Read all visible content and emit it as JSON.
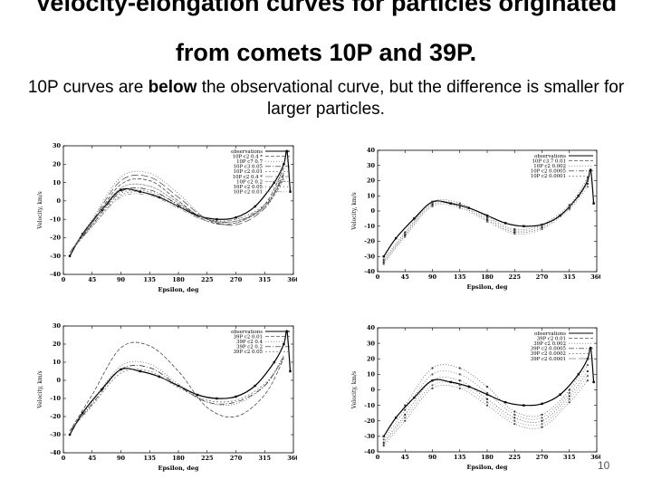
{
  "slide": {
    "title_line1": "Velocity-elongation curves for particles originated",
    "title_line2": "from comets 10P and 39P.",
    "subtitle_start": "10P curves are ",
    "subtitle_emphasis": "below",
    "subtitle_end": " the observational curve, but the difference is smaller for larger particles.",
    "page_number": "10"
  },
  "chart_data": [
    {
      "type": "line",
      "xlabel": "Epsilon, deg",
      "ylabel": "Velocity, km/s",
      "xlim": [
        0,
        360
      ],
      "ylim": [
        -40,
        30
      ],
      "xticks": [
        0,
        45,
        90,
        135,
        180,
        225,
        270,
        315,
        360
      ],
      "yticks": [
        -40,
        -30,
        -20,
        -10,
        0,
        10,
        20,
        30
      ],
      "legend_position": "top-right",
      "series": [
        {
          "name": "observations",
          "x": [
            10,
            30,
            60,
            90,
            120,
            150,
            180,
            210,
            240,
            270,
            300,
            330,
            345,
            350,
            355
          ],
          "values": [
            -30,
            -18,
            -5,
            6,
            5,
            2,
            -3,
            -8,
            -10,
            -9,
            -3,
            10,
            20,
            27,
            5
          ]
        },
        {
          "name": "10P c2 0.4 *",
          "x": [
            10,
            45,
            90,
            135,
            180,
            225,
            270,
            315,
            345
          ],
          "values": [
            -28,
            -12,
            9,
            11,
            0,
            -11,
            -12,
            -2,
            18
          ]
        },
        {
          "name": "10P c7 0.7",
          "x": [
            10,
            45,
            90,
            135,
            180,
            225,
            270,
            315,
            345
          ],
          "values": [
            -28,
            -10,
            13,
            15,
            4,
            -10,
            -12,
            -3,
            16
          ]
        },
        {
          "name": "10P c3 0.05",
          "x": [
            10,
            45,
            90,
            135,
            180,
            225,
            270,
            315,
            345
          ],
          "values": [
            -28,
            -13,
            5,
            6,
            -2,
            -10,
            -11,
            -3,
            14
          ]
        },
        {
          "name": "10P c2 0.01",
          "x": [
            10,
            45,
            90,
            135,
            180,
            225,
            270,
            315,
            345
          ],
          "values": [
            -28,
            -14,
            3,
            4,
            -3,
            -11,
            -11,
            -4,
            12
          ]
        },
        {
          "name": "10P c2 0.4 *",
          "x": [
            10,
            45,
            90,
            135,
            180,
            225,
            270,
            315,
            345
          ],
          "values": [
            -28,
            -11,
            11,
            13,
            2,
            -10,
            -13,
            -4,
            15
          ]
        },
        {
          "name": "10P c2 0.2",
          "x": [
            10,
            45,
            90,
            135,
            180,
            225,
            270,
            315,
            345
          ],
          "values": [
            -28,
            -12,
            7,
            8,
            -1,
            -10,
            -11,
            -3,
            13
          ]
        },
        {
          "name": "10P c2 0.05",
          "x": [
            10,
            45,
            90,
            135,
            180,
            225,
            270,
            315,
            345
          ],
          "values": [
            -28,
            -13,
            4,
            5,
            -2,
            -10,
            -10,
            -2,
            12
          ]
        },
        {
          "name": "10P c2 0.01",
          "x": [
            10,
            45,
            90,
            135,
            180,
            225,
            270,
            315,
            345
          ],
          "values": [
            -28,
            -14,
            2,
            3,
            -4,
            -11,
            -10,
            -3,
            11
          ]
        }
      ]
    },
    {
      "type": "scatter",
      "xlabel": "Epsilon, deg",
      "ylabel": "Velocity, km/s",
      "xlim": [
        0,
        360
      ],
      "ylim": [
        -40,
        40
      ],
      "xticks": [
        0,
        45,
        90,
        135,
        180,
        225,
        270,
        315,
        360
      ],
      "yticks": [
        -40,
        -30,
        -20,
        -10,
        0,
        10,
        20,
        30,
        40
      ],
      "legend_position": "top-right",
      "series": [
        {
          "name": "observations",
          "x": [
            10,
            30,
            60,
            90,
            120,
            150,
            180,
            210,
            240,
            270,
            300,
            330,
            345,
            350,
            355
          ],
          "values": [
            -30,
            -18,
            -5,
            6,
            5,
            2,
            -3,
            -8,
            -10,
            -9,
            -3,
            10,
            20,
            27,
            5
          ]
        },
        {
          "name": "10P c3.7 0.01",
          "x": [
            10,
            45,
            90,
            135,
            180,
            225,
            270,
            315,
            345
          ],
          "values": [
            -32,
            -14,
            6,
            5,
            -4,
            -12,
            -9,
            4,
            22
          ]
        },
        {
          "name": "10P c2 0.002",
          "x": [
            10,
            45,
            90,
            135,
            180,
            225,
            270,
            315,
            345
          ],
          "values": [
            -33,
            -15,
            5,
            4,
            -5,
            -13,
            -10,
            3,
            20
          ]
        },
        {
          "name": "10P c2 0.0005",
          "x": [
            10,
            45,
            90,
            135,
            180,
            225,
            270,
            315,
            345
          ],
          "values": [
            -34,
            -16,
            4,
            3,
            -6,
            -14,
            -11,
            2,
            18
          ]
        },
        {
          "name": "10P c2 0.0001",
          "x": [
            10,
            45,
            90,
            135,
            180,
            225,
            270,
            315,
            345
          ],
          "values": [
            -35,
            -17,
            3,
            2,
            -7,
            -15,
            -12,
            1,
            16
          ]
        }
      ]
    },
    {
      "type": "line",
      "xlabel": "Epsilon, deg",
      "ylabel": "Velocity, km/s",
      "xlim": [
        0,
        360
      ],
      "ylim": [
        -40,
        30
      ],
      "xticks": [
        0,
        45,
        90,
        135,
        180,
        225,
        270,
        315,
        360
      ],
      "yticks": [
        -40,
        -30,
        -20,
        -10,
        0,
        10,
        20,
        30
      ],
      "legend_position": "top-right",
      "series": [
        {
          "name": "observations",
          "x": [
            10,
            30,
            60,
            90,
            120,
            150,
            180,
            210,
            240,
            270,
            300,
            330,
            345,
            350,
            355
          ],
          "values": [
            -30,
            -18,
            -5,
            6,
            5,
            2,
            -3,
            -8,
            -10,
            -9,
            -3,
            10,
            20,
            27,
            5
          ]
        },
        {
          "name": "39P c2 0.01",
          "x": [
            10,
            45,
            90,
            135,
            180,
            225,
            270,
            315,
            345
          ],
          "values": [
            -28,
            -8,
            18,
            19,
            5,
            -15,
            -20,
            -8,
            12
          ]
        },
        {
          "name": "39P c2 0.4",
          "x": [
            10,
            45,
            90,
            135,
            180,
            225,
            270,
            315,
            345
          ],
          "values": [
            -28,
            -12,
            8,
            9,
            -2,
            -12,
            -13,
            -3,
            14
          ]
        },
        {
          "name": "39P c2 0.2",
          "x": [
            10,
            45,
            90,
            135,
            180,
            225,
            270,
            315,
            345
          ],
          "values": [
            -28,
            -13,
            6,
            7,
            -3,
            -12,
            -12,
            -3,
            13
          ]
        },
        {
          "name": "39P c2 0.05",
          "x": [
            10,
            45,
            90,
            135,
            180,
            225,
            270,
            315,
            345
          ],
          "values": [
            -28,
            -14,
            4,
            5,
            -4,
            -11,
            -11,
            -2,
            12
          ]
        }
      ]
    },
    {
      "type": "scatter",
      "xlabel": "Epsilon, deg",
      "ylabel": "Velocity, km/s",
      "xlim": [
        0,
        360
      ],
      "ylim": [
        -40,
        40
      ],
      "xticks": [
        0,
        45,
        90,
        135,
        180,
        225,
        270,
        315,
        360
      ],
      "yticks": [
        -40,
        -30,
        -20,
        -10,
        0,
        10,
        20,
        30,
        40
      ],
      "legend_position": "top-right",
      "series": [
        {
          "name": "observations",
          "x": [
            10,
            30,
            60,
            90,
            120,
            150,
            180,
            210,
            240,
            270,
            300,
            330,
            345,
            350,
            355
          ],
          "values": [
            -30,
            -18,
            -5,
            6,
            5,
            2,
            -3,
            -8,
            -10,
            -9,
            -3,
            10,
            20,
            27,
            5
          ]
        },
        {
          "name": "39P c2 0.01",
          "x": [
            10,
            45,
            90,
            135,
            180,
            225,
            270,
            315,
            345
          ],
          "values": [
            -30,
            -10,
            14,
            14,
            2,
            -14,
            -16,
            0,
            20
          ]
        },
        {
          "name": "39P c2 0.002",
          "x": [
            10,
            45,
            90,
            135,
            180,
            225,
            270,
            315,
            345
          ],
          "values": [
            -32,
            -13,
            10,
            10,
            -2,
            -16,
            -18,
            -2,
            16
          ]
        },
        {
          "name": "39P c2 0.0005",
          "x": [
            10,
            45,
            90,
            135,
            180,
            225,
            270,
            315,
            345
          ],
          "values": [
            -34,
            -16,
            6,
            6,
            -6,
            -18,
            -20,
            -4,
            12
          ]
        },
        {
          "name": "39P c2 0.0002",
          "x": [
            10,
            45,
            90,
            135,
            180,
            225,
            270,
            315,
            345
          ],
          "values": [
            -35,
            -18,
            3,
            3,
            -8,
            -20,
            -22,
            -6,
            9
          ]
        },
        {
          "name": "39P c2 0.0001",
          "x": [
            10,
            45,
            90,
            135,
            180,
            225,
            270,
            315,
            345
          ],
          "values": [
            -36,
            -20,
            1,
            1,
            -10,
            -22,
            -24,
            -8,
            6
          ]
        }
      ]
    }
  ]
}
